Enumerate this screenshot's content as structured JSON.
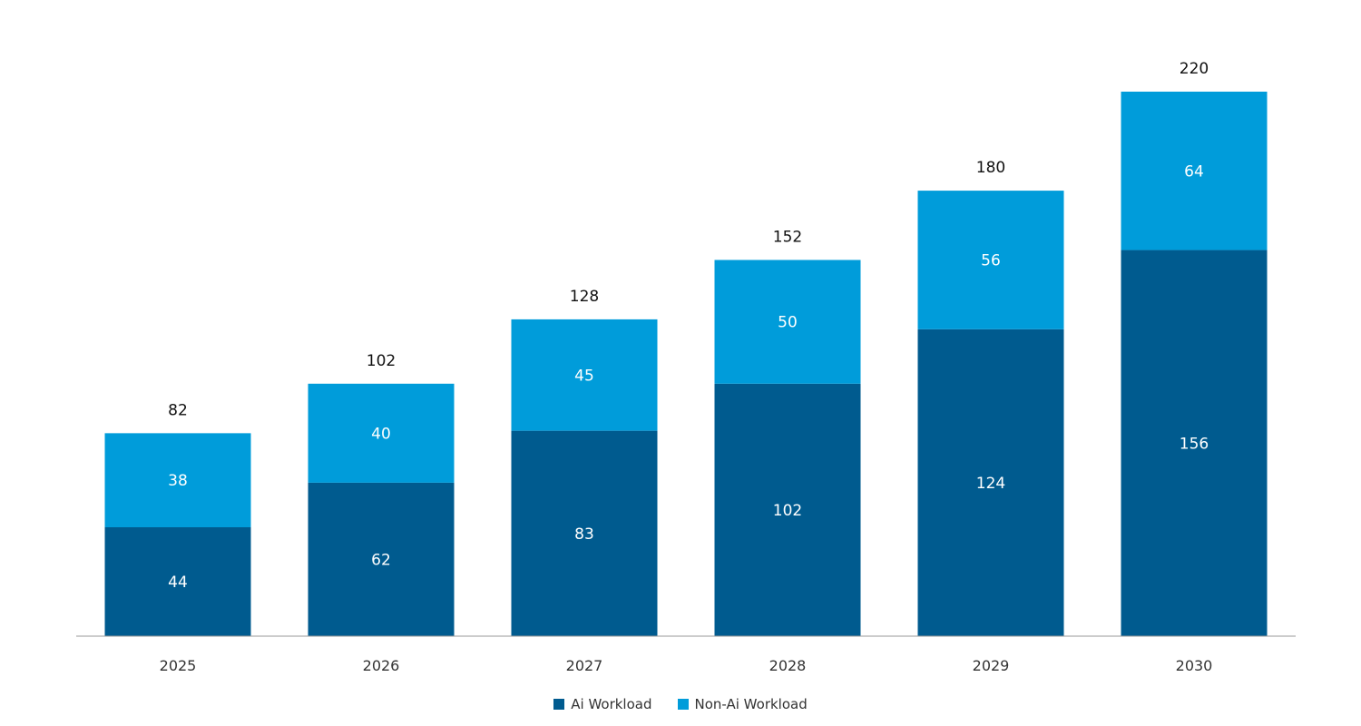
{
  "chart_data": {
    "type": "bar",
    "stacked": true,
    "categories": [
      "2025",
      "2026",
      "2027",
      "2028",
      "2029",
      "2030"
    ],
    "series": [
      {
        "name": "Ai Workload",
        "values": [
          44,
          62,
          83,
          102,
          124,
          156
        ],
        "color": "#005b8f"
      },
      {
        "name": "Non-Ai Workload",
        "values": [
          38,
          40,
          45,
          50,
          56,
          64
        ],
        "color": "#009cda"
      }
    ],
    "totals": [
      "82",
      "102",
      "128",
      "152",
      "180",
      "220"
    ],
    "ylim": [
      0,
      220
    ],
    "grid": false,
    "legend_position": "bottom-center"
  }
}
